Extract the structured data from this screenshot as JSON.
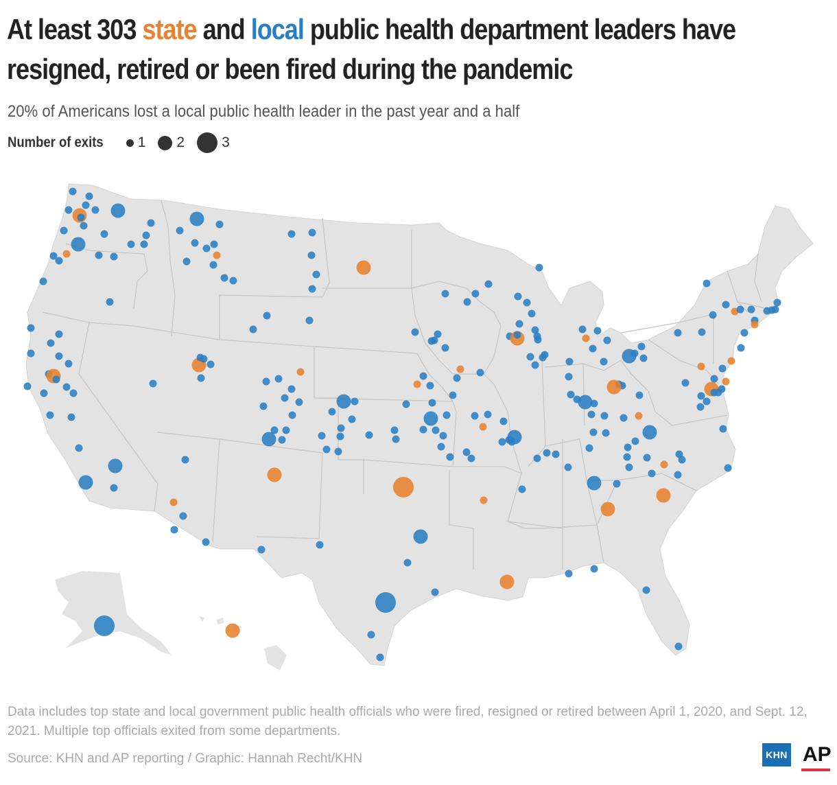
{
  "title": {
    "prefix": "At least 303 ",
    "state": "state",
    "middle": " and ",
    "local": "local",
    "suffix": " public health department leaders have resigned, retired or been fired during the pandemic"
  },
  "subtitle": "20% of Americans lost a local public health leader in the past year and a half",
  "legend": {
    "title": "Number of exits",
    "items": [
      {
        "label": "1",
        "size": 1
      },
      {
        "label": "2",
        "size": 2
      },
      {
        "label": "3",
        "size": 3
      }
    ]
  },
  "colors": {
    "state": "#e8822e",
    "local": "#2a7ec3",
    "land": "#e3e3e3",
    "border": "#c4c4c4"
  },
  "note": "Data includes top state and local government public health officials who were fired, resigned or retired between April 1, 2020, and Sept. 12, 2021. Multiple top officials exited from some departments.",
  "source": "Source: KHN and AP reporting / Graphic: Hannah Recht/KHN",
  "logos": {
    "khn": "KHN",
    "ap": "AP"
  }
}
